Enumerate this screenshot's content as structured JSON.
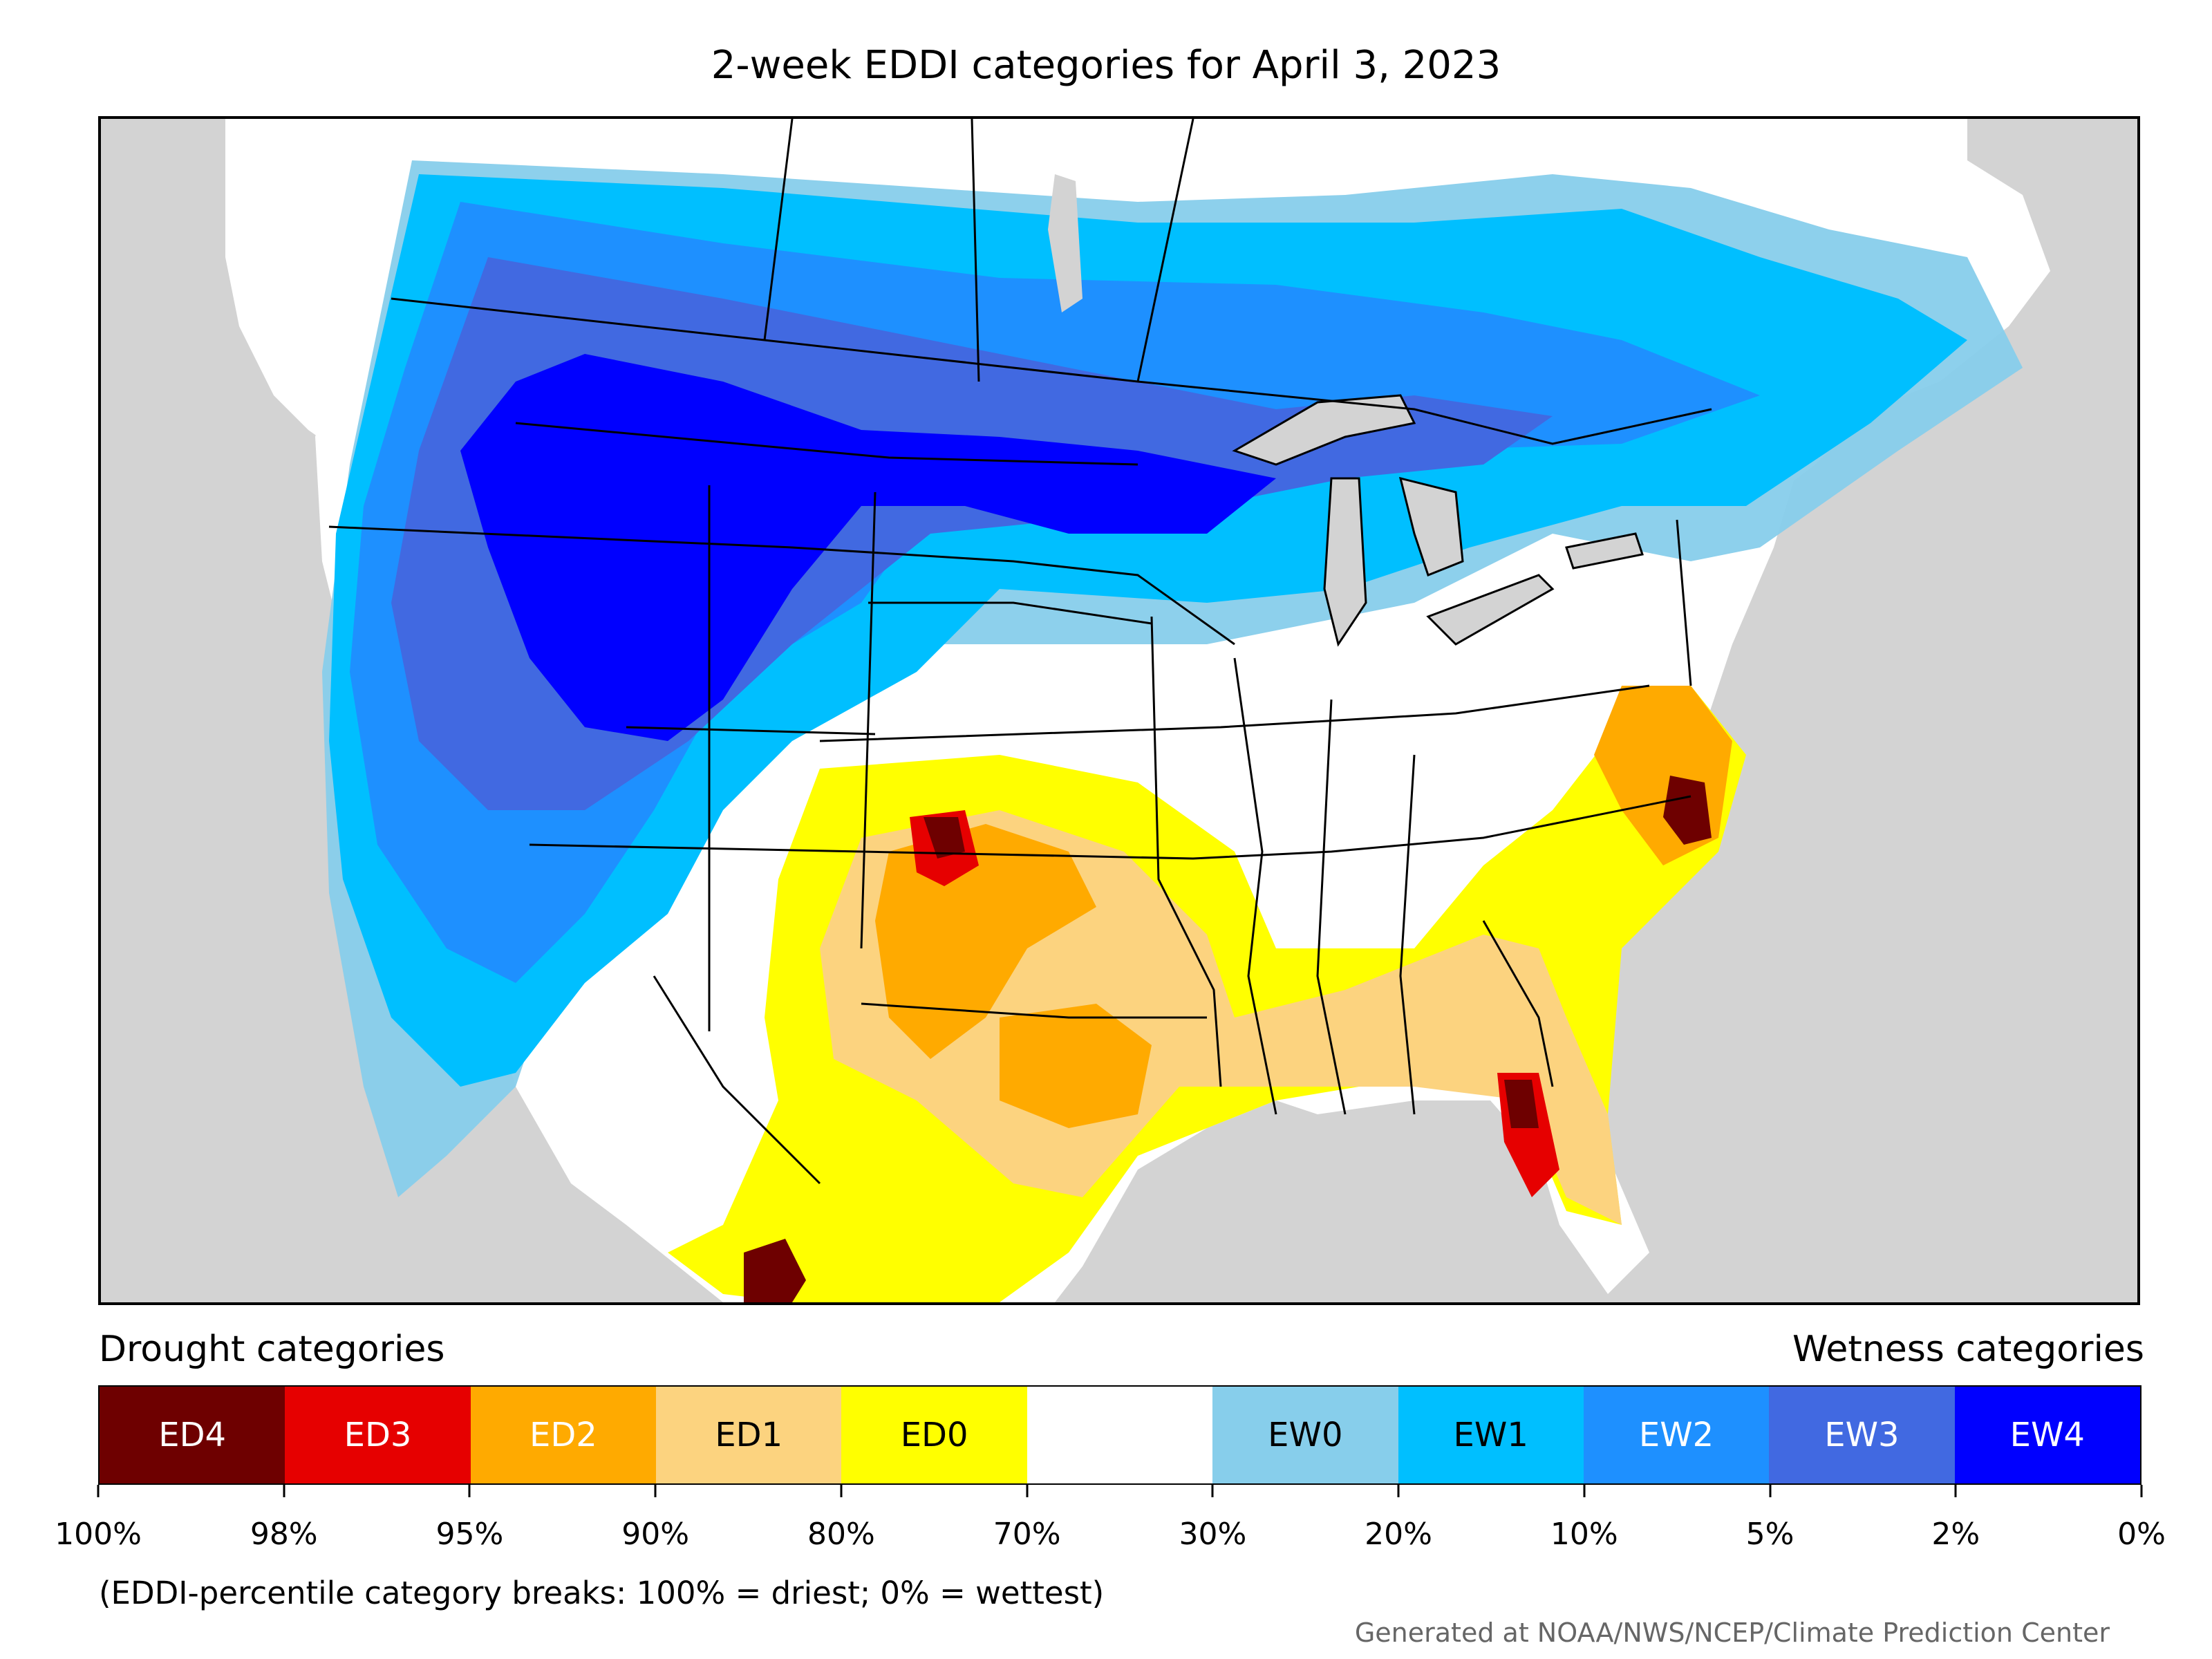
{
  "title": "2-week EDDI categories for April 3, 2023",
  "legend": {
    "drought_heading": "Drought categories",
    "wetness_heading": "Wetness categories",
    "categories": [
      {
        "label": "ED4",
        "color": "#6e0000",
        "text_color": "#ffffff"
      },
      {
        "label": "ED3",
        "color": "#e60000",
        "text_color": "#ffffff"
      },
      {
        "label": "ED2",
        "color": "#ffaa00",
        "text_color": "#ffffff"
      },
      {
        "label": "ED1",
        "color": "#fcd37f",
        "text_color": "#000000"
      },
      {
        "label": "ED0",
        "color": "#ffff00",
        "text_color": "#000000"
      },
      {
        "label": "",
        "color": "#ffffff",
        "text_color": "#000000"
      },
      {
        "label": "EW0",
        "color": "#87ceeb",
        "text_color": "#000000"
      },
      {
        "label": "EW1",
        "color": "#00bfff",
        "text_color": "#000000"
      },
      {
        "label": "EW2",
        "color": "#1e90ff",
        "text_color": "#ffffff"
      },
      {
        "label": "EW3",
        "color": "#4169e1",
        "text_color": "#ffffff"
      },
      {
        "label": "EW4",
        "color": "#0000ff",
        "text_color": "#ffffff"
      }
    ],
    "ticks": [
      "100%",
      "98%",
      "95%",
      "90%",
      "80%",
      "70%",
      "30%",
      "20%",
      "10%",
      "5%",
      "2%",
      "0%"
    ]
  },
  "note": "(EDDI-percentile category breaks: 100% = driest; 0% = wettest)",
  "credit": "Generated at NOAA/NWS/NCEP/Climate Prediction Center",
  "colors": {
    "background_land_outside": "#d3d3d3",
    "ocean": "#d3d3d3",
    "border": "#000000"
  }
}
